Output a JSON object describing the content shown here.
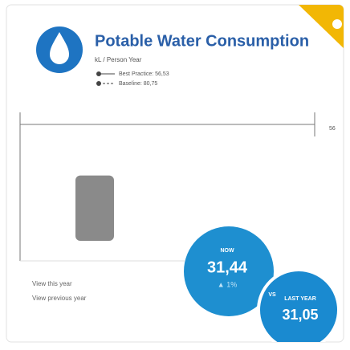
{
  "header": {
    "title": "Potable Water Consumption",
    "unit": "kL / Person Year"
  },
  "legend": [
    {
      "label": "Best Practice: 56,53"
    },
    {
      "label": "Baseline: 80,75"
    }
  ],
  "axis_max": 56,
  "links": [
    "View this year",
    "View previous year"
  ],
  "now": {
    "heading": "NOW",
    "value": 31.44,
    "label": "31,44",
    "change": "▲ 1%"
  },
  "vs": "VS",
  "last_year": {
    "heading": "LAST YEAR",
    "value": 31.05,
    "label": "31,05"
  }
}
